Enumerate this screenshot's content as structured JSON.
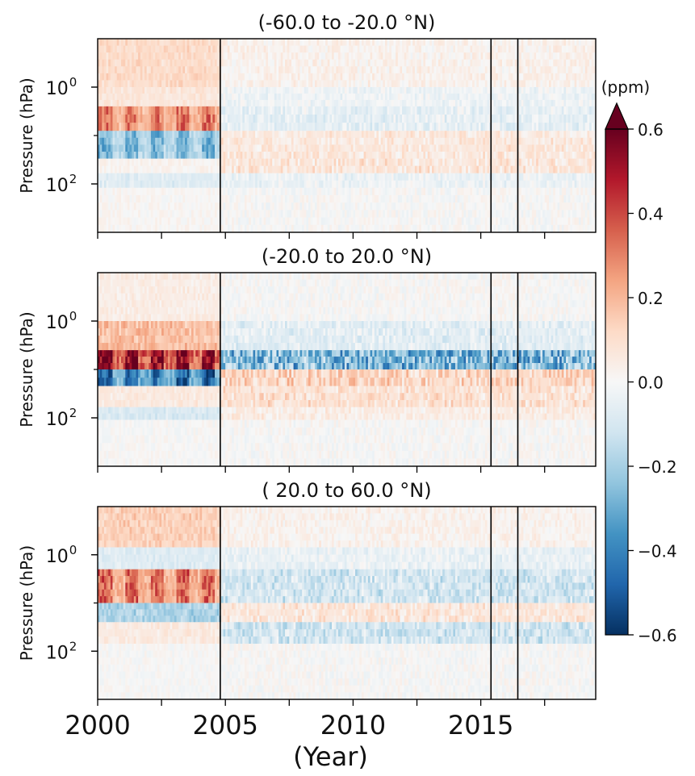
{
  "chart_data": {
    "type": "heatmap",
    "panels": [
      {
        "title": "(-60.0 to -20.0 °N)",
        "ylabel": "Pressure (hPa)",
        "yscale": "log",
        "ylim": [
          1000,
          0.1
        ],
        "xlim": [
          2000,
          2019.5
        ],
        "yticks": [
          {
            "value": 1,
            "label": "10",
            "exp": "0"
          },
          {
            "value": 100,
            "label": "10",
            "exp": "2"
          }
        ],
        "bands": [
          {
            "ptop": 0.1,
            "pbot": 1.0,
            "value": 0.12,
            "ext_value": 0.03
          },
          {
            "ptop": 1.0,
            "pbot": 2.5,
            "value": 0.08,
            "ext_value": -0.03
          },
          {
            "ptop": 2.5,
            "pbot": 8,
            "value": 0.35,
            "ext_value": -0.06
          },
          {
            "ptop": 8,
            "pbot": 30,
            "value": -0.3,
            "ext_value": 0.07
          },
          {
            "ptop": 30,
            "pbot": 60,
            "value": 0.02,
            "ext_value": 0.08
          },
          {
            "ptop": 60,
            "pbot": 120,
            "value": -0.08,
            "ext_value": -0.04
          },
          {
            "ptop": 120,
            "pbot": 1000,
            "value": 0.01,
            "ext_value": 0.0
          }
        ]
      },
      {
        "title": "(-20.0 to  20.0 °N)",
        "ylabel": "Pressure (hPa)",
        "yscale": "log",
        "ylim": [
          1000,
          0.1
        ],
        "xlim": [
          2000,
          2019.5
        ],
        "yticks": [
          {
            "value": 1,
            "label": "10",
            "exp": "0"
          },
          {
            "value": 100,
            "label": "10",
            "exp": "2"
          }
        ],
        "bands": [
          {
            "ptop": 0.1,
            "pbot": 1.0,
            "value": 0.05,
            "ext_value": 0.0
          },
          {
            "ptop": 1.0,
            "pbot": 4,
            "value": 0.2,
            "ext_value": -0.07
          },
          {
            "ptop": 4,
            "pbot": 10,
            "value": 0.62,
            "ext_value": -0.3
          },
          {
            "ptop": 10,
            "pbot": 22,
            "value": -0.5,
            "ext_value": 0.14
          },
          {
            "ptop": 22,
            "pbot": 60,
            "value": 0.06,
            "ext_value": 0.1
          },
          {
            "ptop": 60,
            "pbot": 110,
            "value": -0.1,
            "ext_value": 0.05
          },
          {
            "ptop": 110,
            "pbot": 1000,
            "value": 0.0,
            "ext_value": 0.0
          }
        ]
      },
      {
        "title": "( 20.0 to  60.0 °N)",
        "ylabel": "Pressure (hPa)",
        "yscale": "log",
        "ylim": [
          1000,
          0.1
        ],
        "xlim": [
          2000,
          2019.5
        ],
        "yticks": [
          {
            "value": 1,
            "label": "10",
            "exp": "0"
          },
          {
            "value": 100,
            "label": "10",
            "exp": "2"
          }
        ],
        "bands": [
          {
            "ptop": 0.1,
            "pbot": 0.7,
            "value": 0.15,
            "ext_value": 0.03
          },
          {
            "ptop": 0.7,
            "pbot": 2,
            "value": -0.08,
            "ext_value": -0.05
          },
          {
            "ptop": 2,
            "pbot": 10,
            "value": 0.38,
            "ext_value": -0.12
          },
          {
            "ptop": 10,
            "pbot": 25,
            "value": -0.2,
            "ext_value": 0.08
          },
          {
            "ptop": 25,
            "pbot": 70,
            "value": 0.06,
            "ext_value": -0.12
          },
          {
            "ptop": 70,
            "pbot": 1000,
            "value": 0.0,
            "ext_value": 0.0
          }
        ]
      }
    ],
    "high_period": [
      2000,
      2004.8
    ],
    "vlines": [
      2004.8,
      2015.4,
      2016.45
    ],
    "xticks": [
      2000,
      2005,
      2010,
      2015
    ],
    "xlabel": "(Year)",
    "colorbar": {
      "label": "(ppm)",
      "range": [
        -0.6,
        0.6
      ],
      "ticks": [
        "0.6",
        "0.4",
        "0.2",
        "0.0",
        "−0.2",
        "−0.4",
        "−0.6"
      ],
      "extend": "max",
      "colormap": "RdBu_r"
    }
  }
}
